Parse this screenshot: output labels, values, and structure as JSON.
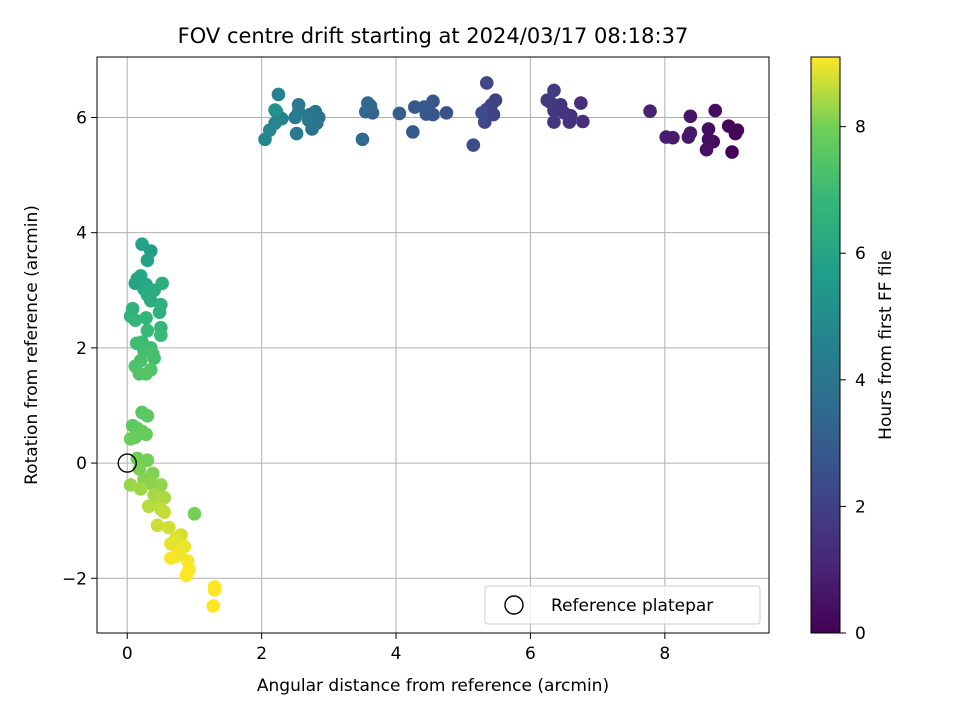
{
  "chart_data": {
    "type": "scatter",
    "title": "FOV centre drift starting at 2024/03/17 08:18:37",
    "xlabel": "Angular distance from reference (arcmin)",
    "ylabel": "Rotation from reference (arcmin)",
    "colorbar_label": "Hours from first FF file",
    "colormap": "viridis",
    "xlim": [
      -0.45,
      9.55
    ],
    "ylim": [
      -2.95,
      7.05
    ],
    "clim": [
      0,
      9.1
    ],
    "xticks": [
      0,
      2,
      4,
      6,
      8
    ],
    "yticks": [
      -2,
      0,
      2,
      4,
      6
    ],
    "cticks": [
      0,
      2,
      4,
      6,
      8
    ],
    "xtick_labels": [
      "0",
      "2",
      "4",
      "6",
      "8"
    ],
    "ytick_labels": [
      "−2",
      "0",
      "2",
      "4",
      "6"
    ],
    "ctick_labels": [
      "0",
      "2",
      "4",
      "6",
      "8"
    ],
    "grid": true,
    "legend": {
      "label": "Reference platepar",
      "placement": "lower right"
    },
    "reference_point": {
      "x": 0,
      "y": 0
    },
    "series": [
      {
        "points": [
          [
            9.05,
            5.72,
            0.05
          ],
          [
            9.0,
            5.4,
            0.1
          ],
          [
            9.08,
            5.78,
            0.15
          ],
          [
            8.95,
            5.85,
            0.2
          ],
          [
            8.72,
            5.58,
            0.3
          ],
          [
            8.75,
            6.12,
            0.35
          ],
          [
            8.65,
            5.8,
            0.4
          ],
          [
            8.65,
            5.62,
            0.45
          ],
          [
            8.62,
            5.44,
            0.5
          ],
          [
            8.38,
            6.02,
            0.6
          ],
          [
            8.38,
            5.73,
            0.65
          ],
          [
            8.35,
            5.66,
            0.7
          ],
          [
            8.12,
            5.65,
            0.8
          ],
          [
            8.02,
            5.66,
            0.85
          ],
          [
            7.78,
            6.11,
            1.0
          ],
          [
            6.78,
            5.93,
            1.3
          ],
          [
            6.75,
            6.25,
            1.35
          ],
          [
            6.6,
            6.03,
            1.4
          ],
          [
            6.58,
            5.92,
            1.45
          ],
          [
            6.5,
            6.08,
            1.5
          ],
          [
            6.45,
            6.22,
            1.55
          ],
          [
            6.35,
            5.92,
            1.6
          ],
          [
            6.35,
            6.12,
            1.65
          ],
          [
            6.3,
            6.26,
            1.7
          ],
          [
            6.35,
            6.47,
            1.75
          ],
          [
            6.25,
            6.3,
            1.8
          ],
          [
            5.48,
            6.3,
            2.0
          ],
          [
            5.42,
            6.22,
            2.05
          ],
          [
            5.45,
            6.05,
            2.1
          ],
          [
            5.35,
            6.14,
            2.15
          ],
          [
            5.35,
            6.6,
            2.2
          ],
          [
            5.32,
            5.92,
            2.25
          ],
          [
            5.28,
            6.08,
            2.3
          ],
          [
            5.15,
            5.52,
            2.4
          ],
          [
            4.75,
            6.08,
            2.6
          ],
          [
            4.55,
            6.28,
            2.7
          ],
          [
            4.55,
            6.05,
            2.75
          ],
          [
            4.45,
            6.06,
            2.8
          ],
          [
            4.42,
            6.18,
            2.85
          ],
          [
            4.28,
            6.18,
            2.9
          ],
          [
            4.25,
            5.75,
            2.95
          ],
          [
            4.05,
            6.07,
            3.05
          ],
          [
            3.65,
            6.08,
            3.3
          ],
          [
            3.62,
            6.2,
            3.35
          ],
          [
            3.58,
            6.25,
            3.4
          ],
          [
            3.55,
            6.1,
            3.45
          ],
          [
            3.5,
            5.62,
            3.5
          ],
          [
            2.85,
            6.0,
            3.8
          ],
          [
            2.82,
            5.9,
            3.85
          ],
          [
            2.8,
            6.1,
            3.9
          ],
          [
            2.75,
            5.8,
            3.95
          ],
          [
            2.72,
            6.05,
            4.0
          ],
          [
            2.7,
            5.95,
            4.05
          ],
          [
            2.55,
            6.1,
            4.1
          ],
          [
            2.55,
            6.22,
            4.15
          ],
          [
            2.52,
            5.72,
            4.2
          ],
          [
            2.5,
            6.0,
            4.25
          ],
          [
            2.3,
            5.98,
            4.5
          ],
          [
            2.25,
            6.4,
            4.55
          ],
          [
            2.22,
            6.1,
            4.6
          ],
          [
            2.2,
            5.9,
            4.65
          ],
          [
            2.12,
            5.78,
            4.7
          ],
          [
            2.05,
            5.62,
            4.75
          ],
          [
            2.2,
            6.13,
            5.2
          ],
          [
            0.35,
            3.68,
            5.8
          ],
          [
            0.22,
            3.8,
            5.85
          ],
          [
            0.3,
            3.52,
            5.9
          ],
          [
            0.15,
            3.2,
            5.95
          ],
          [
            0.12,
            3.12,
            6.0
          ],
          [
            0.2,
            3.25,
            6.05
          ],
          [
            0.28,
            3.1,
            6.1
          ],
          [
            0.25,
            3.02,
            6.15
          ],
          [
            0.4,
            3.0,
            6.2
          ],
          [
            0.3,
            2.92,
            6.25
          ],
          [
            0.35,
            2.82,
            6.3
          ],
          [
            0.32,
            2.98,
            6.35
          ],
          [
            0.52,
            3.12,
            6.4
          ],
          [
            0.5,
            2.75,
            6.45
          ],
          [
            0.48,
            2.62,
            6.5
          ],
          [
            0.08,
            2.68,
            6.55
          ],
          [
            0.05,
            2.55,
            6.6
          ],
          [
            0.28,
            2.52,
            6.7
          ],
          [
            0.12,
            2.48,
            6.75
          ],
          [
            0.5,
            2.35,
            6.8
          ],
          [
            0.3,
            2.3,
            6.85
          ],
          [
            0.5,
            2.22,
            6.9
          ],
          [
            0.22,
            2.1,
            6.95
          ],
          [
            0.14,
            2.08,
            7.0
          ],
          [
            0.35,
            2.0,
            7.05
          ],
          [
            0.25,
            1.95,
            7.1
          ],
          [
            0.4,
            1.82,
            7.15
          ],
          [
            0.38,
            1.9,
            7.2
          ],
          [
            0.2,
            1.78,
            7.25
          ],
          [
            0.12,
            1.68,
            7.3
          ],
          [
            0.35,
            1.62,
            7.35
          ],
          [
            0.18,
            1.55,
            7.4
          ],
          [
            0.28,
            1.55,
            7.45
          ],
          [
            0.22,
            0.88,
            7.55
          ],
          [
            0.3,
            0.82,
            7.6
          ],
          [
            0.08,
            0.65,
            7.65
          ],
          [
            0.15,
            0.6,
            7.7
          ],
          [
            0.12,
            0.45,
            7.75
          ],
          [
            0.22,
            0.55,
            7.8
          ],
          [
            0.28,
            0.5,
            7.85
          ],
          [
            0.05,
            0.42,
            7.9
          ],
          [
            0.15,
            0.08,
            7.95
          ],
          [
            0.3,
            0.05,
            8.0
          ],
          [
            0.18,
            -0.1,
            8.05
          ],
          [
            0.38,
            -0.18,
            8.1
          ],
          [
            0.25,
            -0.28,
            8.15
          ],
          [
            0.35,
            -0.35,
            8.2
          ],
          [
            0.5,
            -0.38,
            8.25
          ],
          [
            0.05,
            -0.38,
            8.3
          ],
          [
            0.2,
            -0.45,
            8.35
          ],
          [
            0.4,
            -0.55,
            8.4
          ],
          [
            0.55,
            -0.6,
            8.45
          ],
          [
            0.48,
            -0.7,
            8.5
          ],
          [
            0.32,
            -0.75,
            8.55
          ],
          [
            0.5,
            -0.8,
            8.6
          ],
          [
            0.55,
            -0.85,
            8.65
          ],
          [
            1.0,
            -0.88,
            8.0
          ],
          [
            0.45,
            -1.08,
            8.7
          ],
          [
            0.62,
            -1.12,
            8.75
          ],
          [
            0.8,
            -1.25,
            8.8
          ],
          [
            0.72,
            -1.32,
            8.85
          ],
          [
            0.65,
            -1.4,
            8.9
          ],
          [
            0.85,
            -1.45,
            8.95
          ],
          [
            0.78,
            -1.55,
            9.0
          ],
          [
            0.72,
            -1.62,
            9.0
          ],
          [
            0.65,
            -1.65,
            9.05
          ],
          [
            0.9,
            -1.7,
            9.05
          ],
          [
            0.92,
            -1.85,
            9.1
          ],
          [
            0.88,
            -1.95,
            9.1
          ],
          [
            1.3,
            -2.15,
            9.1
          ],
          [
            1.3,
            -2.2,
            9.1
          ],
          [
            1.28,
            -2.48,
            9.1
          ]
        ]
      }
    ]
  }
}
